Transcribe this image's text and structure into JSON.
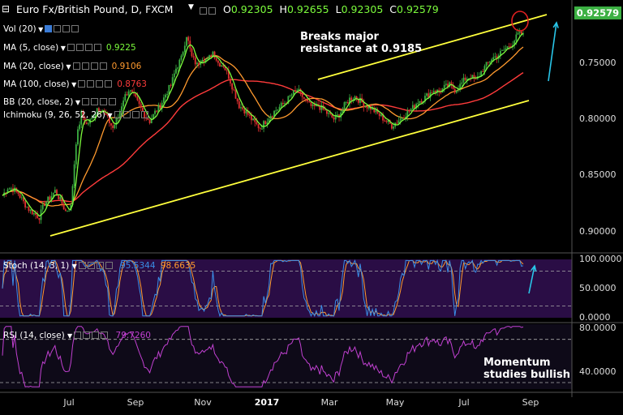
{
  "header": {
    "symbol": "Euro Fx/British Pound, D, FXCM",
    "open_label": "O",
    "open": "0.92305",
    "high_label": "H",
    "high": "0.92655",
    "low_label": "L",
    "low": "0.92305",
    "close_label": "C",
    "close": "0.92579"
  },
  "indicators": [
    {
      "label": "Vol (20)",
      "value": "",
      "color": "#ffffff"
    },
    {
      "label": "MA (5, close)",
      "value": "0.9225",
      "color": "#7cfc3c"
    },
    {
      "label": "MA (20, close)",
      "value": "0.9106",
      "color": "#ff9a2e"
    },
    {
      "label": "MA (100, close)",
      "value": "0.8763",
      "color": "#ff3b3b"
    },
    {
      "label": "BB (20, close, 2)",
      "value": "",
      "color": "#ffffff"
    },
    {
      "label": "Ichimoku (9, 26, 52, 26)",
      "value": "",
      "color": "#ffffff"
    }
  ],
  "price_box": "0.92579",
  "annotations": {
    "resistance": [
      "Breaks major",
      "resistance at 0.9185"
    ],
    "momentum": [
      "Momentum",
      "studies bullish"
    ]
  },
  "stoch": {
    "label": "Stoch (14, 3, 1)",
    "k_value": "95.5344",
    "d_value": "98.6635"
  },
  "rsi": {
    "label": "RSI (14, close)",
    "value": "79.7260"
  },
  "chart_data": [
    {
      "type": "candlestick",
      "title": "Euro Fx/British Pound, D, FXCM",
      "x_ticks": [
        "Jul",
        "Sep",
        "Nov",
        "2017",
        "Mar",
        "May",
        "Jul",
        "Sep"
      ],
      "y_ticks": [
        "0.75000",
        "0.80000",
        "0.85000",
        "0.90000"
      ],
      "ylim": [
        0.744,
        0.94
      ],
      "last_price": 0.92579,
      "close_path": [
        [
          0,
          0.782
        ],
        [
          3,
          0.789
        ],
        [
          6,
          0.788
        ],
        [
          9,
          0.784
        ],
        [
          12,
          0.776
        ],
        [
          15,
          0.77
        ],
        [
          18,
          0.766
        ],
        [
          21,
          0.763
        ],
        [
          24,
          0.775
        ],
        [
          27,
          0.78
        ],
        [
          30,
          0.786
        ],
        [
          33,
          0.778
        ],
        [
          36,
          0.768
        ],
        [
          39,
          0.772
        ],
        [
          42,
          0.83
        ],
        [
          45,
          0.855
        ],
        [
          48,
          0.845
        ],
        [
          51,
          0.85
        ],
        [
          54,
          0.86
        ],
        [
          57,
          0.858
        ],
        [
          60,
          0.85
        ],
        [
          63,
          0.842
        ],
        [
          66,
          0.852
        ],
        [
          69,
          0.868
        ],
        [
          72,
          0.876
        ],
        [
          75,
          0.87
        ],
        [
          78,
          0.862
        ],
        [
          81,
          0.854
        ],
        [
          84,
          0.848
        ],
        [
          87,
          0.856
        ],
        [
          90,
          0.862
        ],
        [
          93,
          0.872
        ],
        [
          96,
          0.88
        ],
        [
          99,
          0.895
        ],
        [
          102,
          0.904
        ],
        [
          105,
          0.925
        ],
        [
          108,
          0.905
        ],
        [
          111,
          0.898
        ],
        [
          114,
          0.905
        ],
        [
          117,
          0.902
        ],
        [
          120,
          0.91
        ],
        [
          123,
          0.9
        ],
        [
          126,
          0.898
        ],
        [
          129,
          0.888
        ],
        [
          132,
          0.875
        ],
        [
          135,
          0.862
        ],
        [
          138,
          0.858
        ],
        [
          141,
          0.852
        ],
        [
          144,
          0.846
        ],
        [
          147,
          0.842
        ],
        [
          150,
          0.848
        ],
        [
          153,
          0.854
        ],
        [
          156,
          0.858
        ],
        [
          159,
          0.862
        ],
        [
          162,
          0.866
        ],
        [
          165,
          0.872
        ],
        [
          168,
          0.876
        ],
        [
          171,
          0.87
        ],
        [
          174,
          0.864
        ],
        [
          177,
          0.86
        ],
        [
          180,
          0.862
        ],
        [
          183,
          0.858
        ],
        [
          186,
          0.854
        ],
        [
          189,
          0.85
        ],
        [
          192,
          0.854
        ],
        [
          195,
          0.862
        ],
        [
          198,
          0.868
        ],
        [
          201,
          0.87
        ],
        [
          204,
          0.866
        ],
        [
          207,
          0.862
        ],
        [
          210,
          0.86
        ],
        [
          213,
          0.856
        ],
        [
          216,
          0.852
        ],
        [
          219,
          0.848
        ],
        [
          222,
          0.844
        ],
        [
          225,
          0.848
        ],
        [
          228,
          0.852
        ],
        [
          231,
          0.856
        ],
        [
          234,
          0.86
        ],
        [
          237,
          0.866
        ],
        [
          240,
          0.868
        ],
        [
          243,
          0.872
        ],
        [
          246,
          0.876
        ],
        [
          249,
          0.874
        ],
        [
          252,
          0.878
        ],
        [
          255,
          0.88
        ],
        [
          258,
          0.876
        ],
        [
          261,
          0.88
        ],
        [
          264,
          0.886
        ],
        [
          267,
          0.888
        ],
        [
          270,
          0.884
        ],
        [
          273,
          0.892
        ],
        [
          276,
          0.898
        ],
        [
          279,
          0.904
        ],
        [
          282,
          0.906
        ],
        [
          285,
          0.91
        ],
        [
          288,
          0.914
        ],
        [
          291,
          0.918
        ],
        [
          294,
          0.925
        ],
        [
          297,
          0.926
        ]
      ],
      "series": [
        {
          "name": "MA (5, close)",
          "color": "#7cfc3c",
          "last": 0.9225
        },
        {
          "name": "MA (20, close)",
          "color": "#ff9a2e",
          "last": 0.9106
        },
        {
          "name": "MA (100, close)",
          "color": "#ff3b3b",
          "last": 0.8763
        }
      ]
    },
    {
      "type": "line",
      "title": "Stoch (14, 3, 1)",
      "y_ticks": [
        "100.0000",
        "50.0000",
        "0.0000"
      ],
      "ylim": [
        0,
        100
      ],
      "series": [
        {
          "name": "%K",
          "color": "#3a8ee6",
          "last": 95.5344
        },
        {
          "name": "%D",
          "color": "#ff9a2e",
          "last": 98.6635
        }
      ]
    },
    {
      "type": "line",
      "title": "RSI (14, close)",
      "y_ticks": [
        "80.0000",
        "40.0000"
      ],
      "ylim": [
        24,
        84
      ],
      "series": [
        {
          "name": "RSI",
          "color": "#c040d0",
          "last": 79.726
        }
      ]
    }
  ],
  "colors": {
    "bull": "#3cb043",
    "bear": "#e03030",
    "trend": "#ffff3c",
    "arrow": "#29c5e8",
    "stoch_bg": "#2a0d45",
    "rsi_bg": "#0e0a18"
  }
}
